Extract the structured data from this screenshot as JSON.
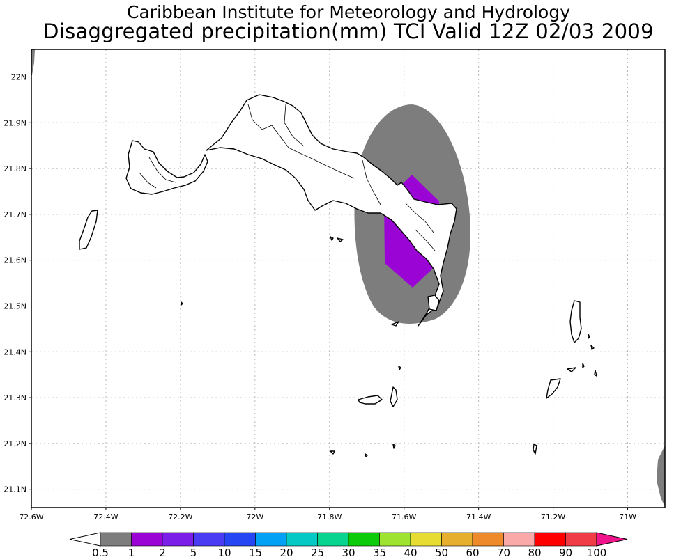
{
  "header": {
    "institute": "Caribbean Institute for Meteorology and Hydrology",
    "product": "Disaggregated precipitation(mm) TCI Valid 12Z 02/03 2009"
  },
  "map": {
    "region": "Turks and Caicos Islands",
    "lon_range": [
      -72.6,
      -70.9
    ],
    "lat_range": [
      21.06,
      22.06
    ],
    "grid": "dotted",
    "x_ticks": [
      "72.6W",
      "72.4W",
      "72.2W",
      "72W",
      "71.8W",
      "71.6W",
      "71.4W",
      "71.2W",
      "71W"
    ],
    "y_ticks": [
      "22N",
      "21.9N",
      "21.8N",
      "21.7N",
      "21.6N",
      "21.5N",
      "21.4N",
      "21.3N",
      "21.2N",
      "21.1N"
    ],
    "colors": {
      "land_outline": "#000000",
      "gray_field": "#7d7d7d",
      "purple_field": "#9a05d6",
      "grid": "#b8b8b8"
    }
  },
  "colorbar": {
    "labels": [
      "0.5",
      "1",
      "2",
      "5",
      "10",
      "15",
      "20",
      "25",
      "30",
      "35",
      "40",
      "50",
      "60",
      "70",
      "80",
      "90",
      "100"
    ],
    "colors": [
      "#ffffff",
      "#7d7d7d",
      "#9a05d6",
      "#7a1ee8",
      "#4a3cf2",
      "#2546f2",
      "#03a1f5",
      "#06c8c4",
      "#08d490",
      "#0bcb0b",
      "#9de32f",
      "#e6dc32",
      "#e6af2d",
      "#ef8a2c",
      "#fba8a8",
      "#ff0000",
      "#f03c46",
      "#f0148c"
    ]
  }
}
